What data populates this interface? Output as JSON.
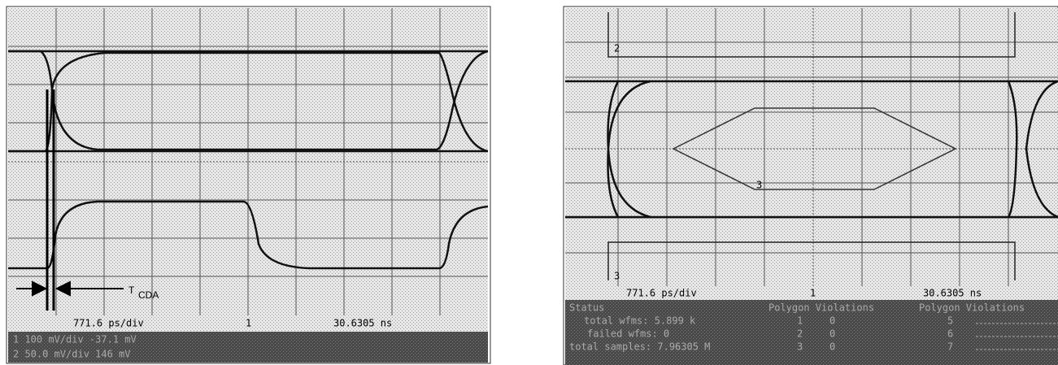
{
  "left": {
    "timebase": "771.6 ps/div",
    "trigger_marker": "1",
    "time_position": "30.6305 ns",
    "channels": [
      "1  100 mV/div   -37.1 mV",
      "2  50.0 mV/div   146 mV"
    ],
    "annotation": {
      "symbol": "T",
      "subscript": "CDA"
    }
  },
  "right": {
    "timebase": "771.6 ps/div",
    "trigger_marker": "1",
    "time_position": "30.6305 ns",
    "markers": [
      "2",
      "3",
      "3"
    ],
    "status": {
      "title": "Status",
      "headers": [
        "Polygon Violations",
        "Polygon Violations"
      ],
      "stats": [
        "total wfms: 5.899 k",
        "failed wfms: 0",
        "total samples: 7.96305 M"
      ],
      "polygon_rows": [
        [
          "1",
          "0"
        ],
        [
          "2",
          "0"
        ],
        [
          "3",
          "0"
        ]
      ],
      "right_rows": [
        "5",
        "6",
        "7"
      ]
    }
  }
}
